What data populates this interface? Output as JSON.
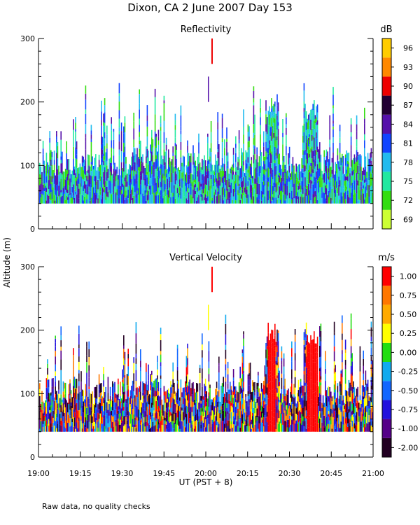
{
  "page": {
    "title": "Dixon, CA  2 June 2007  Day 153",
    "ylabel": "Altitude (m)",
    "xlabel": "UT  (PST + 8)",
    "footnote": "Raw data, no quality checks",
    "xticks": [
      "19:00",
      "19:15",
      "19:30",
      "19:45",
      "20:00",
      "20:15",
      "20:30",
      "20:45",
      "21:00"
    ]
  },
  "chart_data": [
    {
      "type": "heatmap",
      "title": "Reflectivity",
      "ylabel": "Altitude (m)",
      "xlabel": "UT  (PST + 8)",
      "xlim": [
        "19:00",
        "21:00"
      ],
      "ylim": [
        0,
        300
      ],
      "yticks": [
        "0",
        "100",
        "200",
        "300"
      ],
      "colorbar_label": "dB",
      "colorbar_ticks": [
        "69",
        "72",
        "75",
        "78",
        "81",
        "84",
        "87",
        "90",
        "93",
        "96"
      ],
      "colors": [
        "#ccff33",
        "#33dd11",
        "#22e8a0",
        "#22bbee",
        "#1144ff",
        "#5511aa",
        "#220033",
        "#ee0000",
        "#ff8800",
        "#ffcc00"
      ],
      "data_floor_altitude_m": 40,
      "notes": "Dense noisy returns between ~40 m and ~100-200 m; isolated echo near 260-300 m at ~20:03 UT"
    },
    {
      "type": "heatmap",
      "title": "Vertical Velocity",
      "ylabel": "Altitude (m)",
      "xlabel": "UT  (PST + 8)",
      "xlim": [
        "19:00",
        "21:00"
      ],
      "ylim": [
        0,
        300
      ],
      "yticks": [
        "0",
        "100",
        "200",
        "300"
      ],
      "colorbar_label": "m/s",
      "colorbar_ticks": [
        "-2.00",
        "-1.00",
        "-0.75",
        "-0.50",
        "-0.25",
        "0.00",
        "0.25",
        "0.50",
        "0.75",
        "1.00"
      ],
      "colors": [
        "#220022",
        "#550088",
        "#2211dd",
        "#1166ff",
        "#11aaee",
        "#22dd11",
        "#ffff00",
        "#ffaa00",
        "#ff7700",
        "#ff0000"
      ],
      "data_floor_altitude_m": 40,
      "notes": "Mostly negative velocities near ground, strong positive (red) plumes near 20:25 and 20:37 UT"
    }
  ]
}
